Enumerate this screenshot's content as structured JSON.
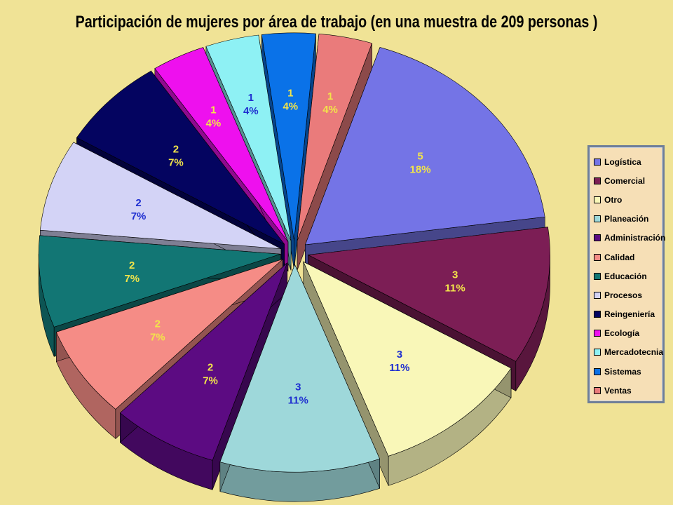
{
  "chart_data": {
    "type": "pie",
    "title": "Participación de mujeres por área de trabajo (en una muestra de 209 personas )",
    "legend_position": "right",
    "slices": [
      {
        "label": "Logística",
        "value": 5,
        "percent": "18%",
        "color": "#7474e6",
        "label_color": "#f2e44a"
      },
      {
        "label": "Comercial",
        "value": 3,
        "percent": "11%",
        "color": "#7c1e55",
        "label_color": "#f2e44a"
      },
      {
        "label": "Otro",
        "value": 3,
        "percent": "11%",
        "color": "#f9f7b8",
        "label_color": "#1f2fd0"
      },
      {
        "label": "Planeación",
        "value": 3,
        "percent": "11%",
        "color": "#9ed8da",
        "label_color": "#1f2fd0"
      },
      {
        "label": "Administración",
        "value": 2,
        "percent": "7%",
        "color": "#5c0b82",
        "label_color": "#f2e44a"
      },
      {
        "label": "Calidad",
        "value": 2,
        "percent": "7%",
        "color": "#f58c86",
        "label_color": "#f2e44a"
      },
      {
        "label": "Educación",
        "value": 2,
        "percent": "7%",
        "color": "#127674",
        "label_color": "#f2e44a"
      },
      {
        "label": "Procesos",
        "value": 2,
        "percent": "7%",
        "color": "#d3d3f6",
        "label_color": "#1f2fd0"
      },
      {
        "label": "Reingeniería",
        "value": 2,
        "percent": "7%",
        "color": "#040460",
        "label_color": "#f2e44a"
      },
      {
        "label": "Ecología",
        "value": 1,
        "percent": "4%",
        "color": "#ee10ee",
        "label_color": "#f2e44a"
      },
      {
        "label": "Mercadotecnia",
        "value": 1,
        "percent": "4%",
        "color": "#8ef1f4",
        "label_color": "#1f2fd0"
      },
      {
        "label": "Sistemas",
        "value": 1,
        "percent": "4%",
        "color": "#0a72e8",
        "label_color": "#f2e44a"
      },
      {
        "label": "Ventas",
        "value": 1,
        "percent": "4%",
        "color": "#ea7b7b",
        "label_color": "#f2e44a"
      }
    ]
  }
}
